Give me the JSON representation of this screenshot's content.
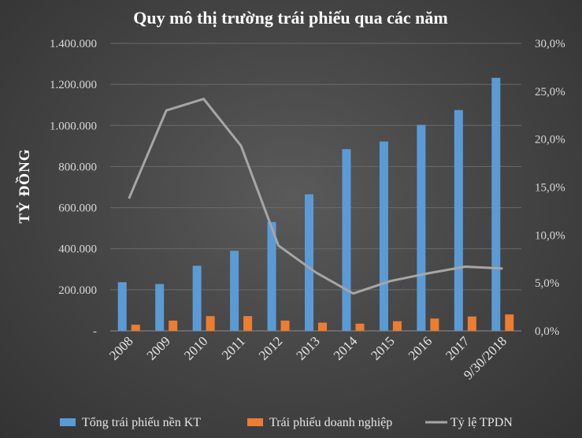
{
  "chart_data": {
    "type": "bar",
    "title": "Quy mô thị trường trái phiếu qua các năm",
    "ylabel": "TỶ ĐỒNG",
    "categories": [
      "2008",
      "2009",
      "2010",
      "2011",
      "2012",
      "2013",
      "2014",
      "2015",
      "2016",
      "2017",
      "9/30/2018"
    ],
    "series": [
      {
        "name": "Tổng trái phiếu nền KT",
        "kind": "bar",
        "axis": "left",
        "color": "#5b9bd5",
        "values": [
          237000,
          228000,
          317000,
          390000,
          530000,
          665000,
          885000,
          922000,
          1003000,
          1075000,
          1232000
        ]
      },
      {
        "name": "Trái phiếu doanh nghiệp",
        "kind": "bar",
        "axis": "left",
        "color": "#ed7d31",
        "values": [
          30000,
          50000,
          72000,
          72000,
          50000,
          40000,
          35000,
          47000,
          60000,
          70000,
          80000
        ]
      },
      {
        "name": "Tỷ lệ TPDN",
        "kind": "line",
        "axis": "right",
        "color": "#a6a6a6",
        "values": [
          13.8,
          23.0,
          24.2,
          19.3,
          8.9,
          6.1,
          3.9,
          5.2,
          6.0,
          6.7,
          6.5
        ]
      }
    ],
    "y_left": {
      "min": 0,
      "max": 1400000,
      "tick_labels": [
        "-",
        "200.000",
        "400.000",
        "600.000",
        "800.000",
        "1.000.000",
        "1.200.000",
        "1.400.000"
      ]
    },
    "y_right": {
      "min": 0,
      "max": 30,
      "tick_labels": [
        "0,0%",
        "5,0%",
        "10,0%",
        "15,0%",
        "20,0%",
        "25,0%",
        "30,0%"
      ]
    },
    "grid": true,
    "legend_position": "bottom"
  }
}
